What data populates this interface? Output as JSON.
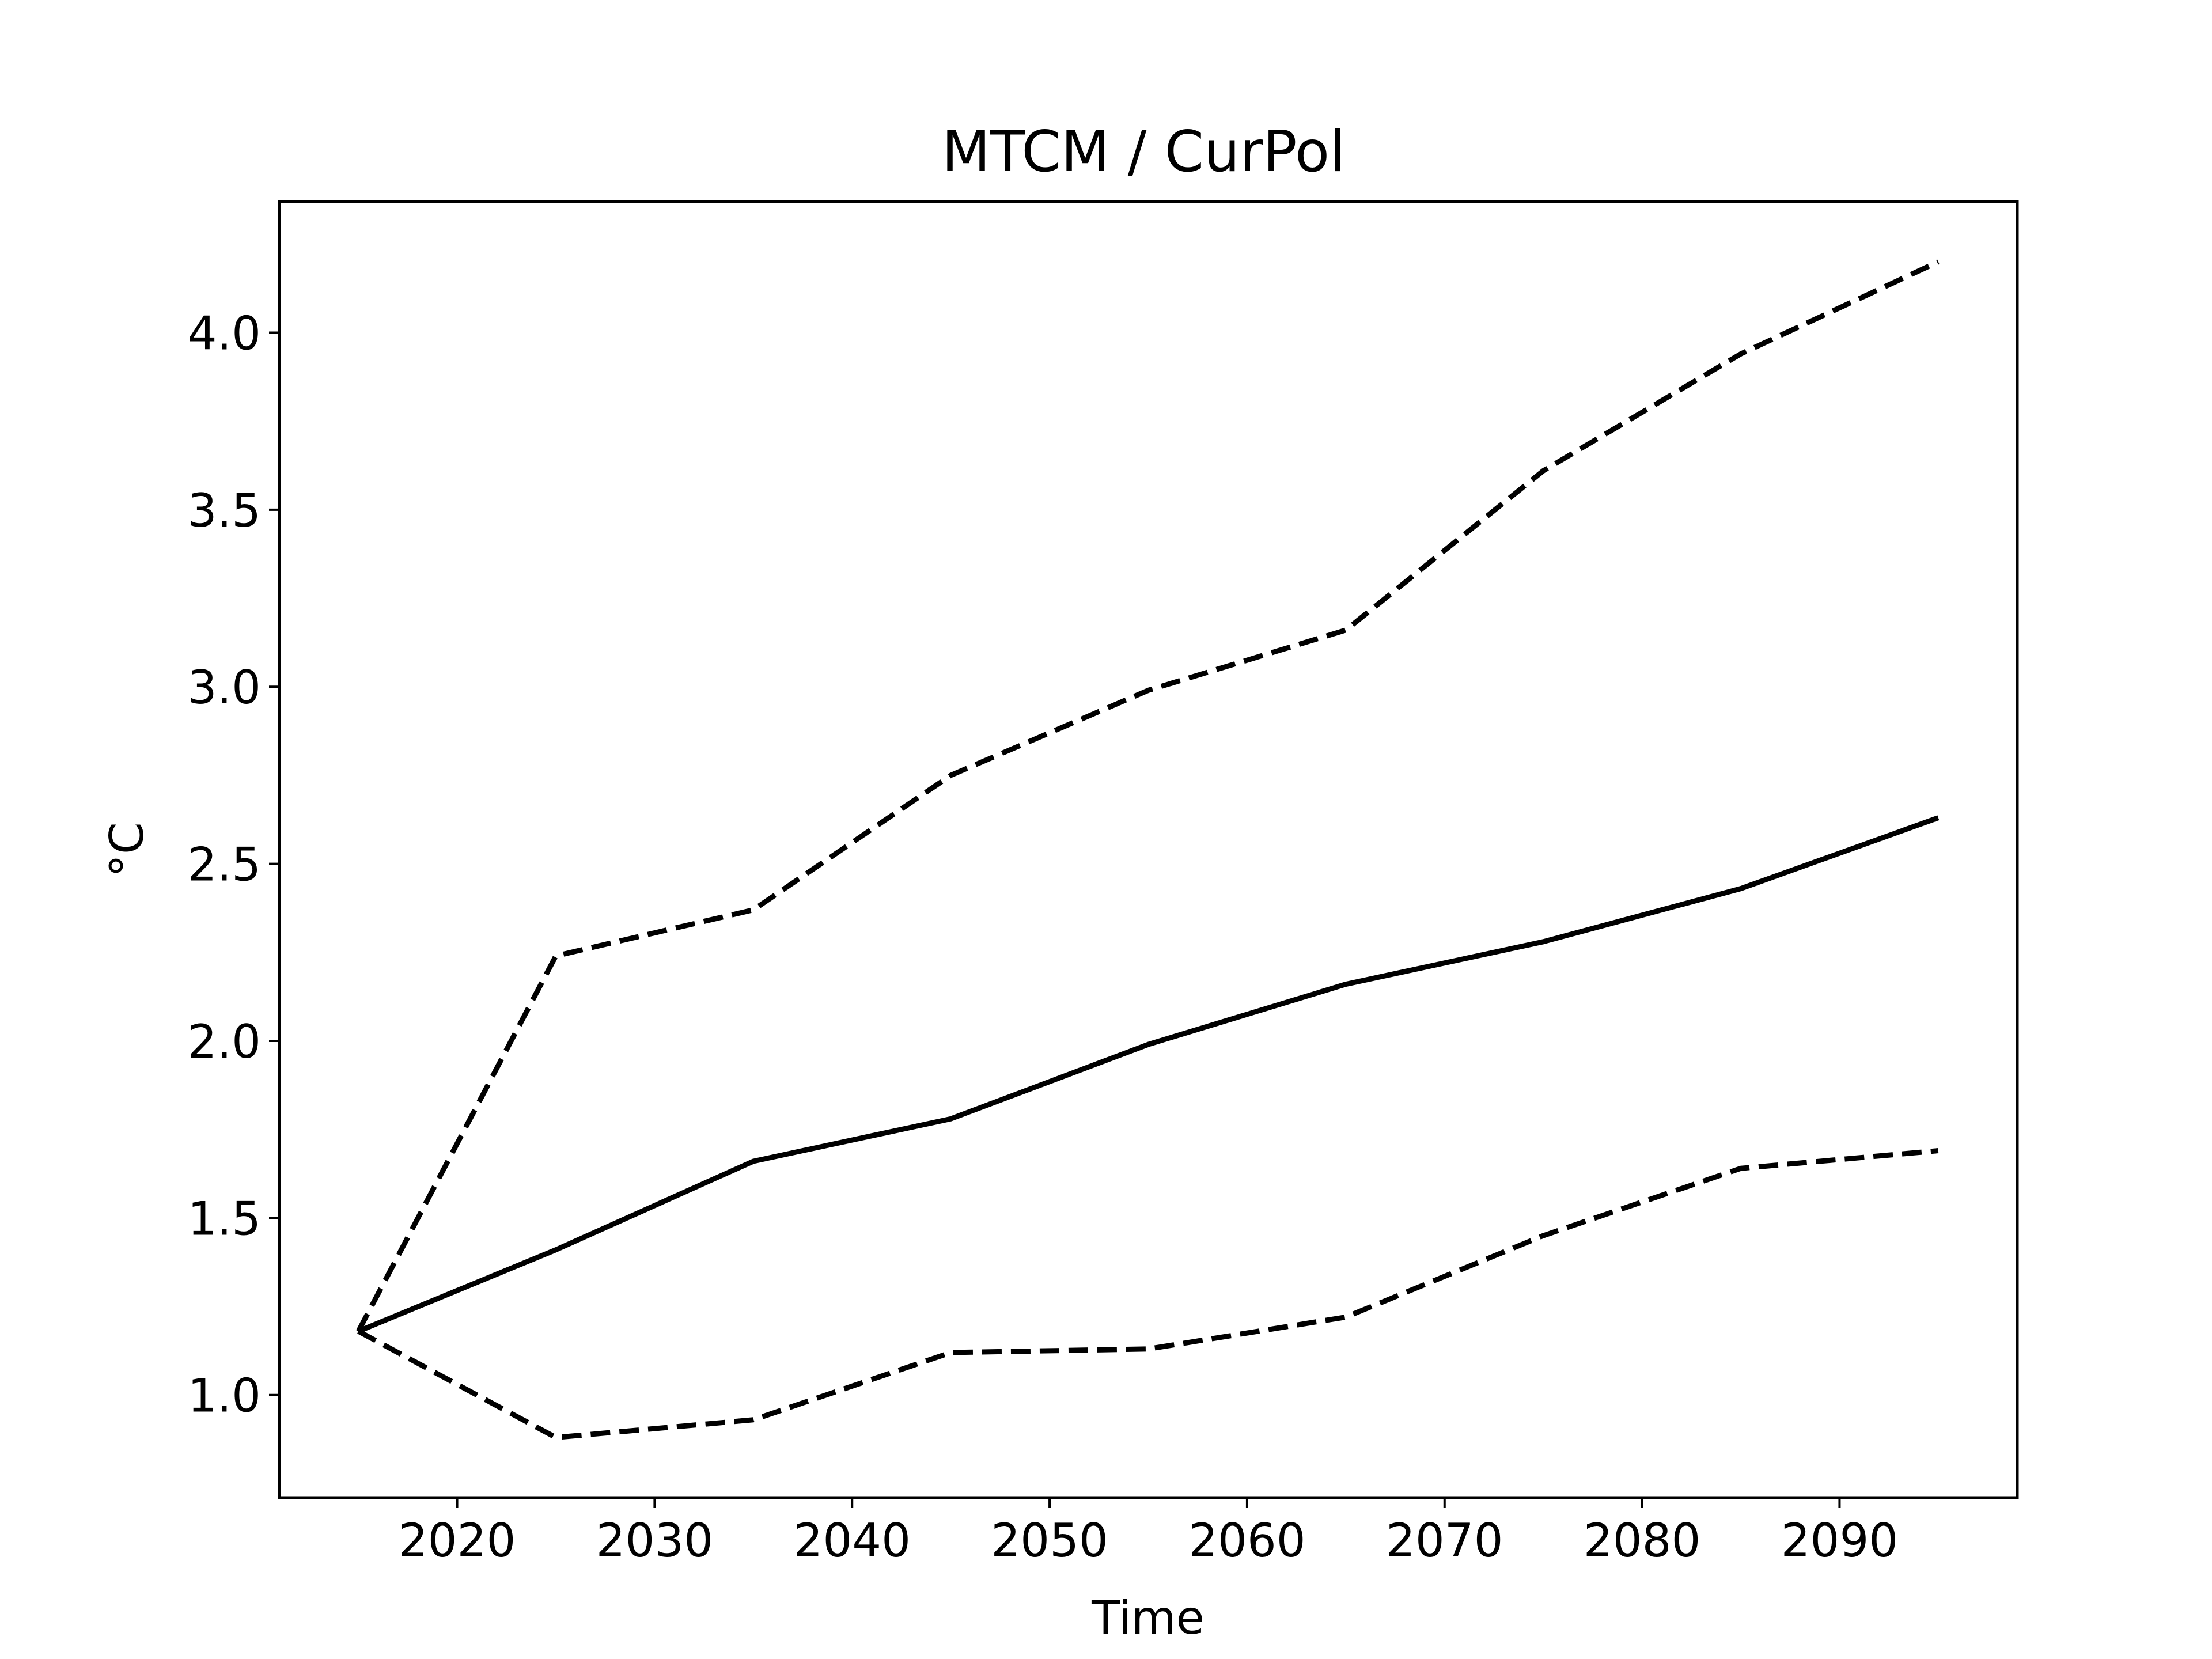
{
  "chart_data": {
    "type": "line",
    "title": "MTCM / CurPol",
    "xlabel": "Time",
    "ylabel": "°C",
    "x": [
      2015,
      2025,
      2035,
      2045,
      2055,
      2065,
      2075,
      2085,
      2095
    ],
    "series": [
      {
        "line_style": "solid",
        "values": [
          1.18,
          1.41,
          1.66,
          1.78,
          1.99,
          2.16,
          2.28,
          2.43,
          2.63
        ]
      },
      {
        "line_style": "dashed",
        "values": [
          1.18,
          2.24,
          2.37,
          2.75,
          2.99,
          3.16,
          3.61,
          3.94,
          4.2
        ]
      },
      {
        "line_style": "dashed",
        "values": [
          1.18,
          0.88,
          0.93,
          1.12,
          1.13,
          1.22,
          1.45,
          1.64,
          1.69
        ]
      }
    ],
    "xlim": [
      2011,
      2099
    ],
    "ylim": [
      0.71,
      4.37
    ],
    "xticks": [
      2020,
      2030,
      2040,
      2050,
      2060,
      2070,
      2080,
      2090
    ],
    "yticks": [
      1.0,
      1.5,
      2.0,
      2.5,
      3.0,
      3.5,
      4.0
    ],
    "ytick_labels": [
      "1.0",
      "1.5",
      "2.0",
      "2.5",
      "3.0",
      "3.5",
      "4.0"
    ],
    "grid": false,
    "legend": "none",
    "line_color": "#000000"
  }
}
